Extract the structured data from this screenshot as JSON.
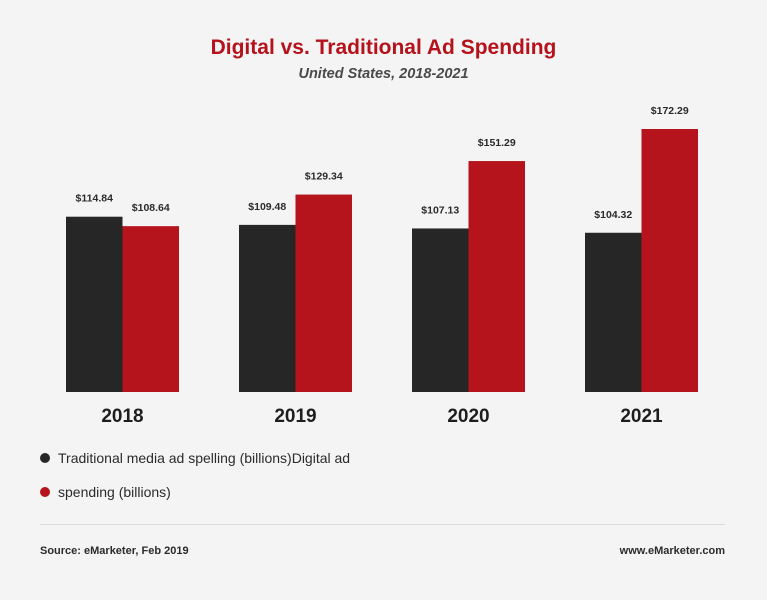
{
  "header": {
    "title": "Digital vs. Traditional Ad Spending",
    "subtitle": "United States, 2018-2021"
  },
  "chart_data": {
    "type": "bar",
    "title": "Digital vs. Traditional Ad Spending",
    "subtitle": "United States, 2018-2021",
    "categories": [
      "2018",
      "2019",
      "2020",
      "2021"
    ],
    "series": [
      {
        "color": "#262626",
        "values": [
          114.84,
          109.48,
          107.13,
          104.32
        ],
        "labels": [
          "$114.84",
          "$109.48",
          "$107.13",
          "$104.32"
        ]
      },
      {
        "color": "#b5141c",
        "values": [
          108.64,
          129.34,
          151.29,
          172.29
        ],
        "labels": [
          "$108.64",
          "$129.34",
          "$151.29",
          "$172.29"
        ]
      }
    ],
    "grid": false,
    "legend_position": "bottom-left"
  },
  "legend": {
    "items": [
      {
        "label": "Traditional media ad spelling (billions)Digital ad",
        "color": "#262626"
      },
      {
        "label": "spending (billions)",
        "color": "#b5141c"
      }
    ]
  },
  "footer": {
    "source": "Source: eMarketer, Feb 2019",
    "website": "www.eMarketer.com"
  }
}
